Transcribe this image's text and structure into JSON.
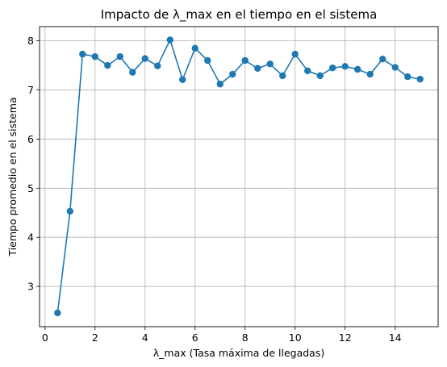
{
  "chart_data": {
    "type": "line",
    "title": "Impacto de λ_max en el tiempo en el sistema",
    "xlabel": "λ_max (Tasa máxima de llegadas)",
    "ylabel": "Tiempo promedio en el sistema",
    "xlim": [
      -0.22,
      15.72
    ],
    "ylim": [
      2.18,
      8.29
    ],
    "xticks": [
      0,
      2,
      4,
      6,
      8,
      10,
      12,
      14
    ],
    "yticks": [
      3,
      4,
      5,
      6,
      7,
      8
    ],
    "grid": true,
    "series": [
      {
        "color": "#1f77b4",
        "marker": "circle",
        "x": [
          0.5,
          1.0,
          1.5,
          2.0,
          2.5,
          3.0,
          3.5,
          4.0,
          4.5,
          5.0,
          5.5,
          6.0,
          6.5,
          7.0,
          7.5,
          8.0,
          8.5,
          9.0,
          9.5,
          10.0,
          10.5,
          11.0,
          11.5,
          12.0,
          12.5,
          13.0,
          13.5,
          14.0,
          14.5,
          15.0
        ],
        "y": [
          2.46,
          4.53,
          7.73,
          7.68,
          7.5,
          7.68,
          7.36,
          7.64,
          7.49,
          8.02,
          7.21,
          7.85,
          7.6,
          7.12,
          7.32,
          7.6,
          7.44,
          7.53,
          7.29,
          7.73,
          7.39,
          7.29,
          7.45,
          7.48,
          7.42,
          7.32,
          7.63,
          7.46,
          7.27,
          7.22
        ]
      }
    ]
  }
}
